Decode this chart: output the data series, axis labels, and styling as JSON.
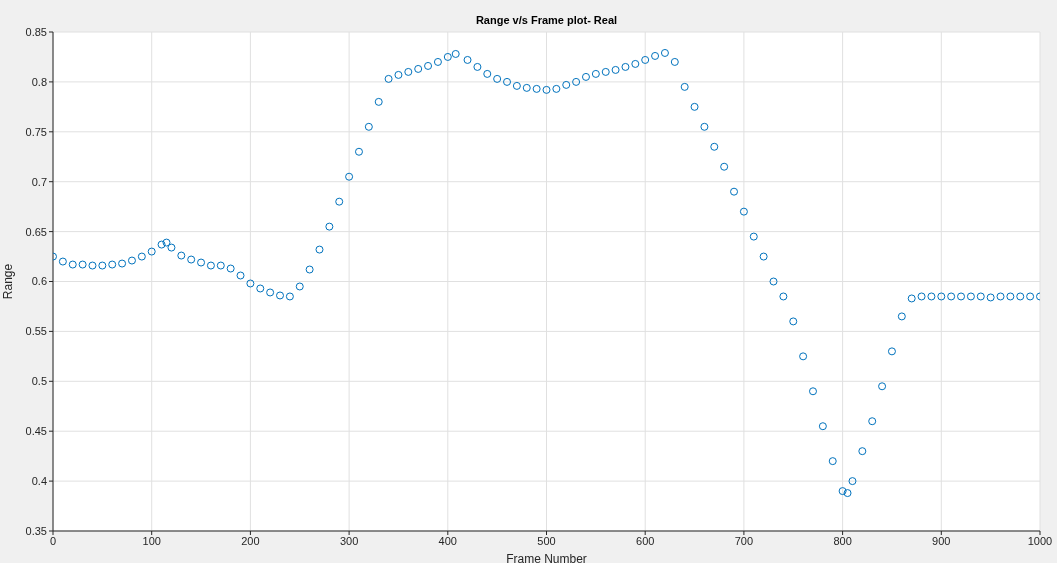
{
  "chart_data": {
    "type": "scatter",
    "title": "Range v/s Frame plot- Real",
    "xlabel": "Frame Number",
    "ylabel": "Range",
    "marker": "circle",
    "grid": true,
    "xlim": [
      0,
      1000
    ],
    "xticks": [
      0,
      100,
      200,
      300,
      400,
      500,
      600,
      700,
      800,
      900,
      1000
    ],
    "ylim": [
      0.35,
      0.85
    ],
    "yticks": [
      0.35,
      0.4,
      0.45,
      0.5,
      0.55,
      0.6,
      0.65,
      0.7,
      0.75,
      0.8,
      0.85
    ],
    "x": [
      0,
      10,
      20,
      30,
      40,
      50,
      60,
      70,
      80,
      90,
      100,
      110,
      115,
      120,
      130,
      140,
      150,
      160,
      170,
      180,
      190,
      200,
      210,
      220,
      230,
      240,
      250,
      260,
      270,
      280,
      290,
      300,
      310,
      320,
      330,
      340,
      350,
      360,
      370,
      380,
      390,
      400,
      408,
      420,
      430,
      440,
      450,
      460,
      470,
      480,
      490,
      500,
      510,
      520,
      530,
      540,
      550,
      560,
      570,
      580,
      590,
      600,
      610,
      620,
      630,
      640,
      650,
      660,
      670,
      680,
      690,
      700,
      710,
      720,
      730,
      740,
      750,
      760,
      770,
      780,
      790,
      800,
      805,
      810,
      820,
      830,
      840,
      850,
      860,
      870,
      880,
      890,
      900,
      910,
      920,
      930,
      940,
      950,
      960,
      970,
      980,
      990,
      1000
    ],
    "series": [
      {
        "color": "#0072bd",
        "values": [
          0.625,
          0.62,
          0.617,
          0.617,
          0.616,
          0.616,
          0.617,
          0.618,
          0.621,
          0.625,
          0.63,
          0.637,
          0.639,
          0.634,
          0.626,
          0.622,
          0.619,
          0.616,
          0.616,
          0.613,
          0.606,
          0.598,
          0.593,
          0.589,
          0.586,
          0.585,
          0.595,
          0.612,
          0.632,
          0.655,
          0.68,
          0.705,
          0.73,
          0.755,
          0.78,
          0.803,
          0.807,
          0.81,
          0.813,
          0.816,
          0.82,
          0.825,
          0.828,
          0.822,
          0.815,
          0.808,
          0.803,
          0.8,
          0.796,
          0.794,
          0.793,
          0.792,
          0.793,
          0.797,
          0.8,
          0.805,
          0.808,
          0.81,
          0.812,
          0.815,
          0.818,
          0.822,
          0.826,
          0.829,
          0.82,
          0.795,
          0.775,
          0.755,
          0.735,
          0.715,
          0.69,
          0.67,
          0.645,
          0.625,
          0.6,
          0.585,
          0.56,
          0.525,
          0.49,
          0.455,
          0.42,
          0.39,
          0.388,
          0.4,
          0.43,
          0.46,
          0.495,
          0.53,
          0.565,
          0.583,
          0.585,
          0.585,
          0.585,
          0.585,
          0.585,
          0.585,
          0.585,
          0.584,
          0.585,
          0.585,
          0.585,
          0.585,
          0.585
        ]
      }
    ]
  }
}
